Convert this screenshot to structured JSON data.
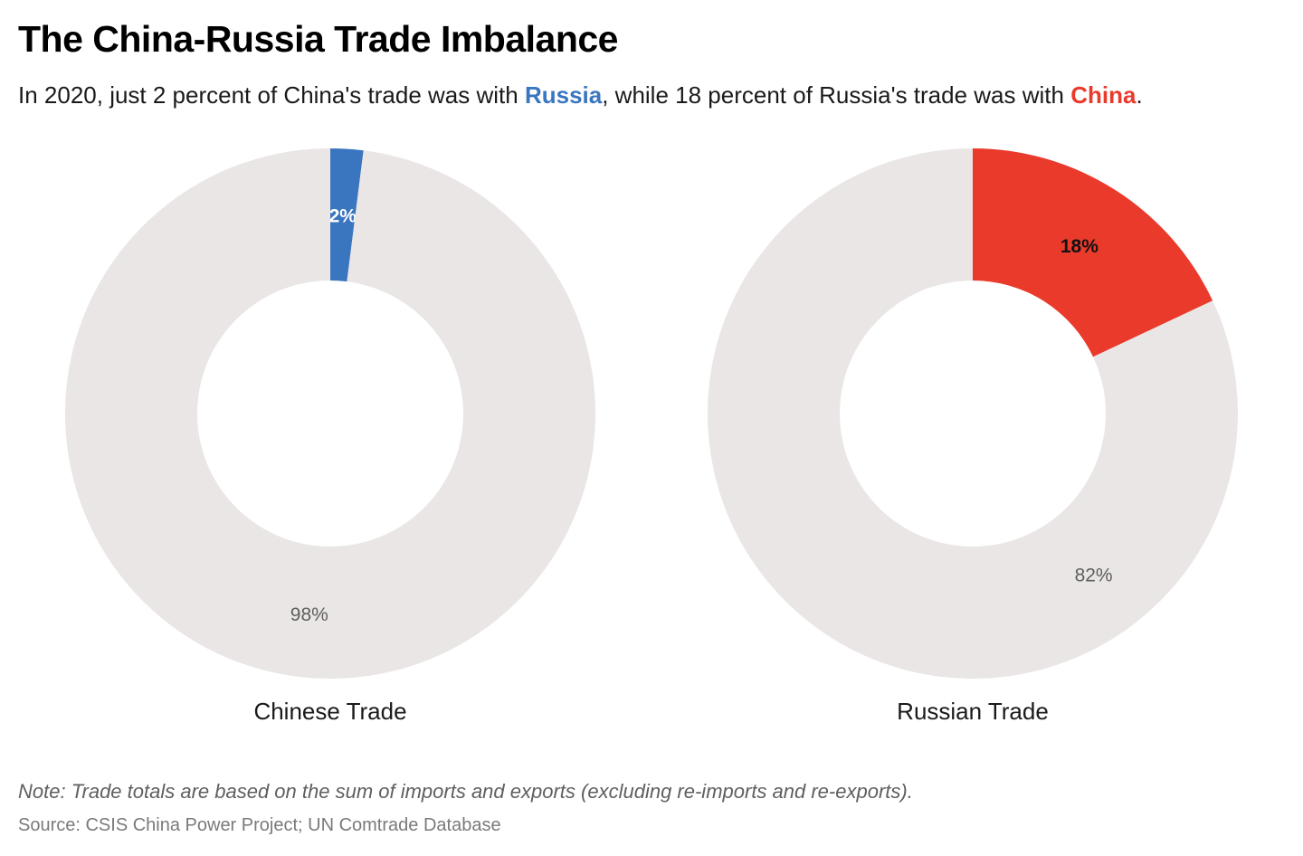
{
  "title": "The China-Russia Trade Imbalance",
  "subtitle": {
    "part1": "In 2020, just 2 percent of China's trade was with ",
    "highlight1": "Russia",
    "part2": ", while 18 percent of Russia's trade was with ",
    "highlight2": "China",
    "part3": "."
  },
  "colors": {
    "russia_blue": "#3a76bf",
    "china_red": "#ea3a2b",
    "remainder_gray": "#e9e6e5",
    "hole_white": "#ffffff"
  },
  "chart_data": [
    {
      "type": "pie",
      "title": "Chinese Trade",
      "slices": [
        {
          "label": "2%",
          "value": 2,
          "color": "#3a76bf",
          "label_color": "#ffffff",
          "label_bold": true
        },
        {
          "label": "98%",
          "value": 98,
          "color": "#e9e6e5",
          "label_color": "#5f5f5f",
          "label_bold": false
        }
      ]
    },
    {
      "type": "pie",
      "title": "Russian Trade",
      "slices": [
        {
          "label": "18%",
          "value": 18,
          "color": "#ea3a2b",
          "label_color": "#111111",
          "label_bold": true
        },
        {
          "label": "82%",
          "value": 82,
          "color": "#e9e6e5",
          "label_color": "#5f5f5f",
          "label_bold": false
        }
      ]
    }
  ],
  "note": "Note: Trade totals are based on the sum of imports and exports (excluding re-imports and re-exports).",
  "source": "Source: CSIS China Power Project; UN Comtrade Database"
}
